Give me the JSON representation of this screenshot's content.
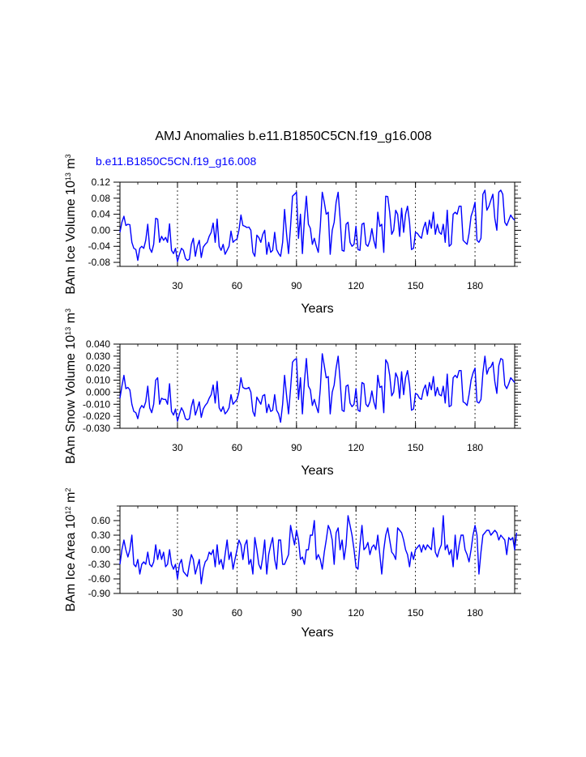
{
  "figure": {
    "title": "AMJ Anomalies b.e11.B1850C5CN.f19_g16.008",
    "case_label": "b.e11.B1850C5CN.f19_g16.008"
  },
  "colors": {
    "series": "#0000ff",
    "axes": "#000000",
    "gridlines": "#000000"
  },
  "chart_data": [
    {
      "type": "line",
      "title": "",
      "xlabel": "Years",
      "ylabel": {
        "base": "BAm Ice Volume 10",
        "exp1": "13",
        "mid": " m",
        "exp2": "3"
      },
      "xlim": [
        1,
        200
      ],
      "ylim": [
        -0.09,
        0.12
      ],
      "xticks": [
        30,
        60,
        90,
        120,
        150,
        180
      ],
      "xtick_labels": [
        "30",
        "60",
        "90",
        "120",
        "150",
        "180"
      ],
      "yticks": [
        -0.08,
        -0.04,
        0.0,
        0.04,
        0.08,
        0.12
      ],
      "ytick_labels": [
        "-0.08",
        "-0.04",
        "0.00",
        "0.04",
        "0.08",
        "0.12"
      ],
      "yminor_step": 0.01,
      "vlines": [
        30,
        60,
        90,
        120,
        150,
        180
      ],
      "series": [
        {
          "name": "b.e11.B1850C5CN.f19_g16.008",
          "values": [
            -0.005,
            0.02,
            0.035,
            0.012,
            0.015,
            0.014,
            -0.03,
            -0.045,
            -0.048,
            -0.075,
            -0.045,
            -0.04,
            -0.045,
            -0.025,
            0.015,
            -0.045,
            -0.055,
            -0.035,
            0.03,
            0.028,
            -0.03,
            -0.015,
            -0.025,
            -0.018,
            -0.03,
            0.016,
            -0.05,
            -0.058,
            -0.045,
            -0.078,
            -0.06,
            -0.045,
            -0.05,
            -0.07,
            -0.075,
            -0.072,
            -0.035,
            -0.02,
            -0.065,
            -0.04,
            -0.025,
            -0.068,
            -0.042,
            -0.035,
            -0.03,
            -0.015,
            -0.005,
            0.018,
            -0.03,
            0.028,
            -0.04,
            -0.05,
            -0.035,
            -0.06,
            -0.05,
            -0.04,
            -0.002,
            -0.03,
            -0.025,
            -0.022,
            0.0,
            0.038,
            0.012,
            0.01,
            0.007,
            0.008,
            0.0,
            -0.055,
            -0.065,
            -0.012,
            -0.018,
            -0.03,
            -0.01,
            0.0,
            -0.06,
            -0.03,
            -0.055,
            -0.05,
            -0.005,
            -0.048,
            -0.058,
            -0.065,
            -0.03,
            0.052,
            -0.01,
            -0.058,
            0.01,
            0.085,
            0.09,
            0.095,
            -0.02,
            0.04,
            -0.058,
            0.028,
            0.085,
            0.015,
            0.005,
            -0.035,
            -0.02,
            -0.04,
            -0.055,
            0.01,
            0.095,
            0.07,
            0.04,
            0.045,
            -0.06,
            0.0,
            0.02,
            0.07,
            0.095,
            0.03,
            -0.05,
            -0.052,
            0.015,
            0.02,
            -0.03,
            -0.04,
            -0.035,
            0.01,
            -0.048,
            -0.05,
            0.015,
            0.018,
            -0.035,
            -0.04,
            -0.025,
            0.004,
            -0.025,
            -0.045,
            0.045,
            0.01,
            0.015,
            -0.055,
            0.085,
            0.084,
            0.045,
            -0.01,
            0.0,
            0.05,
            0.04,
            -0.015,
            0.055,
            -0.005,
            0.04,
            0.06,
            0.02,
            -0.048,
            -0.045,
            -0.005,
            -0.008,
            -0.015,
            -0.02,
            0.005,
            0.02,
            -0.01,
            0.025,
            0.005,
            0.045,
            -0.01,
            0.015,
            -0.005,
            -0.01,
            0.015,
            -0.03,
            0.05,
            -0.04,
            -0.035,
            0.04,
            0.045,
            0.04,
            0.06,
            0.06,
            -0.025,
            -0.03,
            -0.035,
            -0.008,
            0.035,
            0.05,
            0.07,
            -0.025,
            -0.03,
            -0.02,
            0.09,
            0.1,
            0.05,
            0.06,
            0.075,
            0.09,
            0.03,
            0.0,
            0.095,
            0.1,
            0.09,
            0.02,
            0.012,
            0.025,
            0.038,
            0.03,
            0.025
          ]
        }
      ]
    },
    {
      "type": "line",
      "title": "",
      "xlabel": "Years",
      "ylabel": {
        "base": "BAm Snow Volume 10",
        "exp1": "13",
        "mid": " m",
        "exp2": "3"
      },
      "xlim": [
        1,
        200
      ],
      "ylim": [
        -0.03,
        0.04
      ],
      "xticks": [
        30,
        60,
        90,
        120,
        150,
        180
      ],
      "xtick_labels": [
        "30",
        "60",
        "90",
        "120",
        "150",
        "180"
      ],
      "yticks": [
        -0.03,
        -0.02,
        -0.01,
        0.0,
        0.01,
        0.02,
        0.03,
        0.04
      ],
      "ytick_labels": [
        "-0.030",
        "-0.020",
        "-0.010",
        "0.000",
        "0.010",
        "0.020",
        "0.030",
        "0.040"
      ],
      "yminor_step": 0.0025,
      "vlines": [
        30,
        60,
        90,
        120,
        150,
        180
      ],
      "series": [
        {
          "name": "b.e11.B1850C5CN.f19_g16.008",
          "values": [
            -0.005,
            0.005,
            0.014,
            0.003,
            0.004,
            0.002,
            -0.01,
            -0.016,
            -0.017,
            -0.022,
            -0.014,
            -0.011,
            -0.013,
            -0.008,
            0.005,
            -0.013,
            -0.017,
            -0.01,
            0.01,
            0.012,
            -0.01,
            -0.005,
            -0.006,
            -0.006,
            -0.01,
            0.007,
            -0.016,
            -0.019,
            -0.014,
            -0.024,
            -0.018,
            -0.013,
            -0.016,
            -0.022,
            -0.023,
            -0.022,
            -0.012,
            -0.006,
            -0.019,
            -0.014,
            -0.008,
            -0.021,
            -0.014,
            -0.011,
            -0.009,
            -0.005,
            -0.002,
            0.006,
            -0.009,
            0.009,
            -0.013,
            -0.016,
            -0.012,
            -0.018,
            -0.016,
            -0.013,
            -0.002,
            -0.01,
            -0.008,
            -0.006,
            0.0,
            0.012,
            0.004,
            0.003,
            0.003,
            0.004,
            0.0,
            -0.016,
            -0.02,
            -0.004,
            -0.007,
            -0.01,
            -0.003,
            -0.002,
            -0.017,
            -0.01,
            -0.016,
            -0.015,
            -0.002,
            -0.015,
            -0.018,
            -0.025,
            -0.01,
            0.014,
            -0.003,
            -0.018,
            0.003,
            0.025,
            0.027,
            0.028,
            -0.006,
            0.012,
            -0.018,
            0.009,
            0.028,
            0.005,
            0.002,
            -0.011,
            -0.006,
            -0.012,
            -0.017,
            0.003,
            0.032,
            0.022,
            0.012,
            0.013,
            -0.018,
            0.0,
            0.006,
            0.02,
            0.03,
            0.01,
            -0.015,
            -0.016,
            0.005,
            0.006,
            -0.009,
            -0.012,
            -0.01,
            0.003,
            -0.015,
            -0.016,
            0.008,
            0.007,
            -0.01,
            -0.012,
            -0.008,
            0.001,
            -0.008,
            -0.014,
            0.014,
            0.004,
            0.005,
            -0.017,
            0.027,
            0.024,
            0.014,
            -0.003,
            0.0,
            0.016,
            0.012,
            -0.005,
            0.017,
            -0.002,
            0.012,
            0.018,
            0.006,
            -0.015,
            -0.014,
            -0.001,
            -0.002,
            -0.005,
            -0.006,
            0.002,
            0.006,
            -0.003,
            0.008,
            0.002,
            0.013,
            -0.003,
            0.004,
            -0.002,
            -0.003,
            0.005,
            -0.009,
            0.015,
            -0.012,
            -0.011,
            0.012,
            0.014,
            0.012,
            0.018,
            0.018,
            -0.008,
            -0.009,
            -0.011,
            -0.002,
            0.01,
            0.016,
            0.02,
            -0.008,
            -0.009,
            -0.006,
            0.016,
            0.03,
            0.015,
            0.02,
            0.021,
            0.025,
            0.009,
            -0.001,
            0.022,
            0.028,
            0.027,
            0.006,
            0.003,
            0.007,
            0.012,
            0.01,
            0.008
          ]
        }
      ]
    },
    {
      "type": "line",
      "title": "",
      "xlabel": "Years",
      "ylabel": {
        "base": "BAm Ice Area 10",
        "exp1": "12",
        "mid": " m",
        "exp2": "2"
      },
      "xlim": [
        1,
        200
      ],
      "ylim": [
        -0.9,
        0.9
      ],
      "xticks": [
        30,
        60,
        90,
        120,
        150,
        180
      ],
      "xtick_labels": [
        "30",
        "60",
        "90",
        "120",
        "150",
        "180"
      ],
      "yticks": [
        -0.9,
        -0.6,
        -0.3,
        0.0,
        0.3,
        0.6
      ],
      "ytick_labels": [
        "-0.90",
        "-0.60",
        "-0.30",
        "0.00",
        "0.30",
        "0.60"
      ],
      "yminor_step": 0.1,
      "vlines": [
        30,
        60,
        90,
        120,
        150,
        180
      ],
      "series": [
        {
          "name": "b.e11.B1850C5CN.f19_g16.008",
          "values": [
            -0.3,
            0.0,
            0.2,
            0.0,
            -0.15,
            0.0,
            0.3,
            -0.3,
            -0.35,
            -0.2,
            -0.5,
            -0.3,
            -0.25,
            -0.3,
            -0.05,
            -0.3,
            -0.35,
            -0.25,
            0.1,
            -0.2,
            0.0,
            -0.2,
            -0.05,
            -0.35,
            -0.3,
            0.0,
            -0.3,
            -0.4,
            -0.3,
            -0.6,
            -0.3,
            -0.2,
            -0.45,
            -0.5,
            -0.55,
            -0.3,
            -0.1,
            -0.2,
            -0.5,
            -0.35,
            -0.2,
            -0.7,
            -0.4,
            -0.25,
            -0.2,
            -0.05,
            -0.1,
            0.0,
            -0.35,
            0.1,
            -0.3,
            -0.2,
            -0.4,
            -0.1,
            0.2,
            -0.2,
            -0.05,
            -0.4,
            -0.2,
            0.0,
            0.2,
            0.1,
            -0.2,
            0.1,
            0.2,
            -0.3,
            -0.2,
            -0.5,
            0.25,
            0.0,
            -0.3,
            -0.4,
            -0.15,
            0.2,
            -0.5,
            -0.1,
            0.1,
            0.25,
            -0.2,
            -0.4,
            0.2,
            0.2,
            -0.3,
            -0.3,
            -0.2,
            -0.1,
            0.5,
            0.3,
            0.1,
            0.4,
            0.2,
            -0.2,
            -0.15,
            -0.3,
            0.0,
            0.0,
            0.3,
            0.3,
            0.6,
            -0.2,
            -0.1,
            -0.2,
            -0.4,
            -0.05,
            0.2,
            0.5,
            0.4,
            0.2,
            -0.3,
            0.35,
            0.45,
            0.0,
            0.2,
            -0.2,
            0.1,
            0.7,
            0.5,
            0.3,
            0.0,
            -0.35,
            -0.4,
            0.1,
            0.5,
            0.0,
            0.05,
            0.15,
            -0.1,
            0.05,
            0.1,
            0.0,
            0.3,
            -0.1,
            -0.5,
            0.0,
            0.3,
            0.45,
            0.2,
            -0.05,
            -0.1,
            -0.2,
            0.45,
            0.4,
            0.35,
            0.2,
            0.0,
            -0.1,
            -0.35,
            -0.05,
            -0.2,
            0.0,
            0.05,
            0.1,
            -0.05,
            0.1,
            0.0,
            0.1,
            0.05,
            0.0,
            0.45,
            -0.05,
            -0.15,
            0.0,
            0.1,
            0.7,
            0.0,
            0.1,
            -0.1,
            0.0,
            -0.35,
            0.3,
            -0.2,
            0.1,
            0.3,
            0.3,
            0.0,
            -0.1,
            -0.25,
            0.0,
            0.3,
            0.5,
            0.3,
            -0.5,
            -0.05,
            0.3,
            0.35,
            0.4,
            0.4,
            0.3,
            0.35,
            0.4,
            0.35,
            0.2,
            0.3,
            0.25,
            0.2,
            -0.1,
            0.25,
            0.2,
            0.25,
            0.0,
            0.35
          ]
        }
      ]
    }
  ]
}
